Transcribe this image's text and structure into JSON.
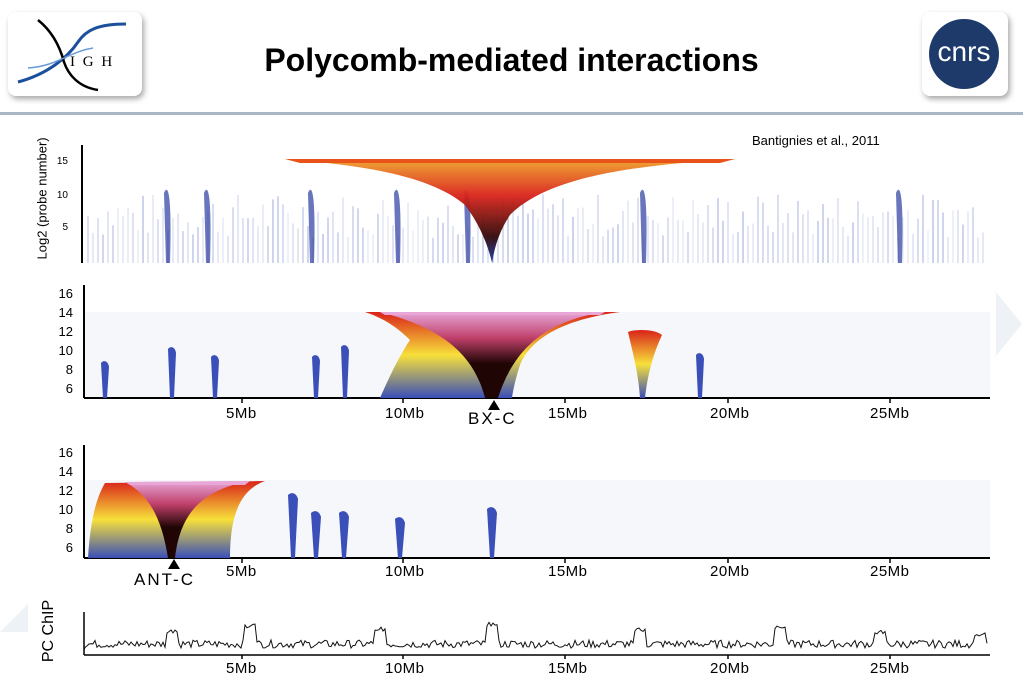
{
  "header": {
    "title": "Polycomb-mediated interactions",
    "left_logo_text": "I G H",
    "right_logo_text": "cnrs"
  },
  "citation": "Bantignies et al., 2011",
  "chart_data": [
    {
      "type": "heatmap",
      "name": "top-panel",
      "ylabel": "Log2 (probe number)",
      "yticks": [
        "15",
        "10",
        "5"
      ]
    },
    {
      "type": "heatmap",
      "name": "bxc-panel",
      "yticks": [
        "16",
        "14",
        "12",
        "10",
        "8",
        "6"
      ],
      "xticks": [
        "5Mb",
        "10Mb",
        "15Mb",
        "20Mb",
        "25Mb"
      ],
      "locus": "BX-C",
      "locus_position_mb": 12.9
    },
    {
      "type": "heatmap",
      "name": "antc-panel",
      "yticks": [
        "16",
        "14",
        "12",
        "10",
        "8",
        "6"
      ],
      "xticks": [
        "5Mb",
        "10Mb",
        "15Mb",
        "20Mb",
        "25Mb"
      ],
      "locus": "ANT-C",
      "locus_position_mb": 2.8
    },
    {
      "type": "area",
      "name": "pc-chip-track",
      "ylabel": "PC ChIP",
      "xticks": [
        "5Mb",
        "10Mb",
        "15Mb",
        "20Mb",
        "25Mb"
      ]
    }
  ],
  "colors": {
    "blue": "#3a4fb8",
    "red": "#d9231a",
    "yellow": "#f7e03a",
    "pink": "#e6a6d8",
    "dark": "#200505",
    "rule": "#a9b6c6"
  }
}
